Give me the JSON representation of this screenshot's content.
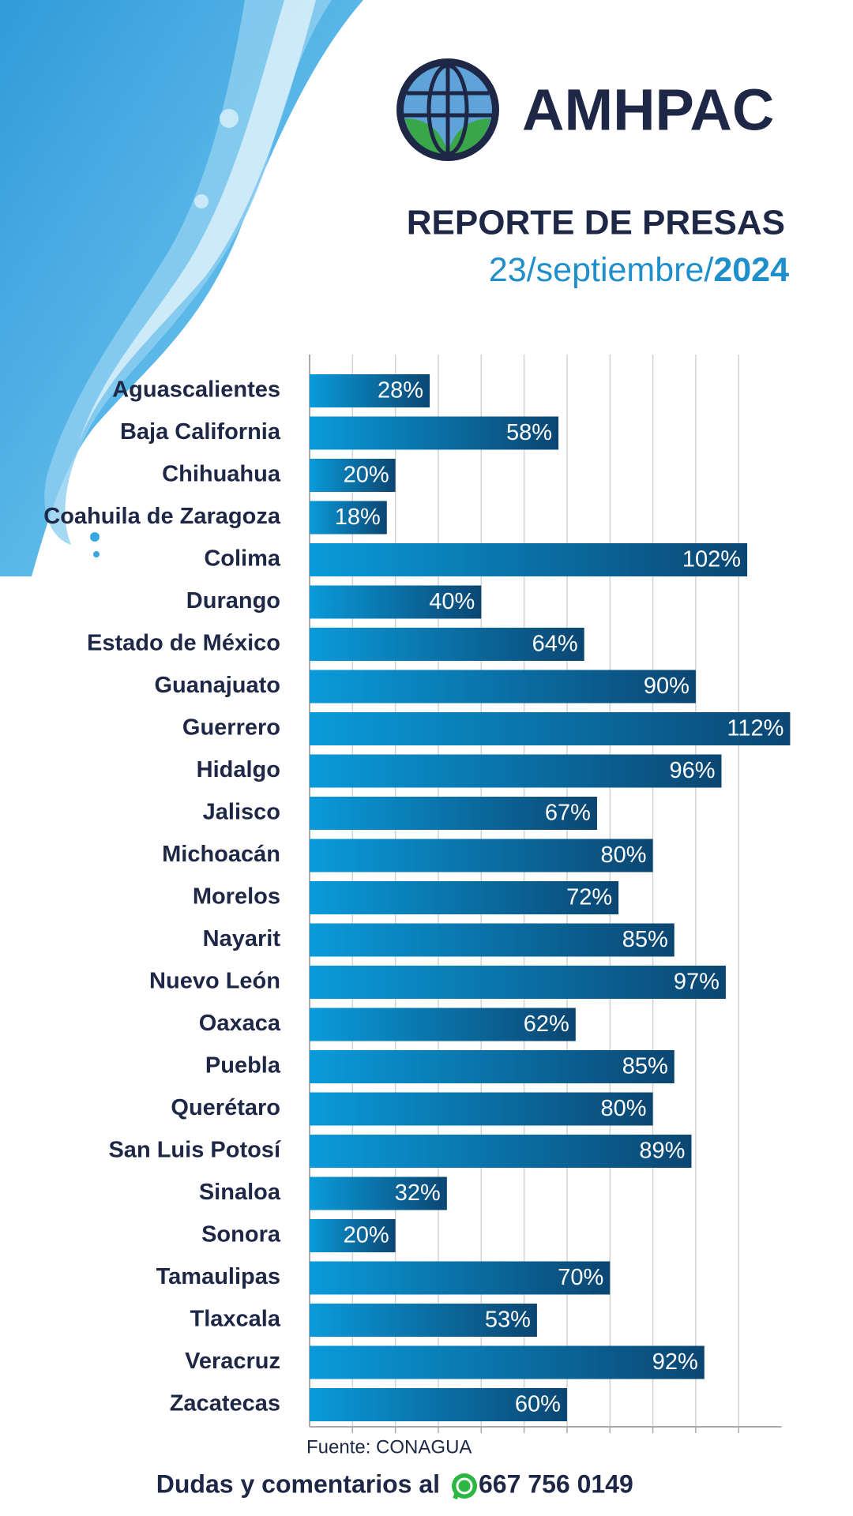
{
  "brand": "AMHPAC",
  "chart_data": {
    "type": "hbar",
    "title": "REPORTE DE PRESAS",
    "subtitle": "23/septiembre/",
    "subtitle_year": "2024",
    "source": "Fuente: CONAGUA",
    "categories": [
      "Aguascalientes",
      "Baja California",
      "Chihuahua",
      "Coahuila de Zaragoza",
      "Colima",
      "Durango",
      "Estado de México",
      "Guanajuato",
      "Guerrero",
      "Hidalgo",
      "Jalisco",
      "Michoacán",
      "Morelos",
      "Nayarit",
      "Nuevo León",
      "Oaxaca",
      "Puebla",
      "Querétaro",
      "San Luis Potosí",
      "Sinaloa",
      "Sonora",
      "Tamaulipas",
      "Tlaxcala",
      "Veracruz",
      "Zacatecas"
    ],
    "values": [
      28,
      58,
      20,
      18,
      102,
      40,
      64,
      90,
      112,
      96,
      67,
      80,
      72,
      85,
      97,
      62,
      85,
      80,
      89,
      32,
      20,
      70,
      53,
      92,
      60
    ],
    "value_labels": [
      "28%",
      "58%",
      "20%",
      "18%",
      "102%",
      "40%",
      "64%",
      "90%",
      "112%",
      "96%",
      "67%",
      "80%",
      "72%",
      "85%",
      "97%",
      "62%",
      "85%",
      "80%",
      "89%",
      "32%",
      "20%",
      "70%",
      "53%",
      "92%",
      "60%"
    ],
    "color": [
      "#0a9bda",
      "#0b4672"
    ],
    "xlim": [
      0,
      110
    ],
    "xticks": [
      10,
      20,
      30,
      40,
      50,
      60,
      70,
      80,
      90,
      100
    ],
    "grid": true
  },
  "footer": {
    "text": "Dudas y comentarios al",
    "phone": "667 756 0149"
  }
}
